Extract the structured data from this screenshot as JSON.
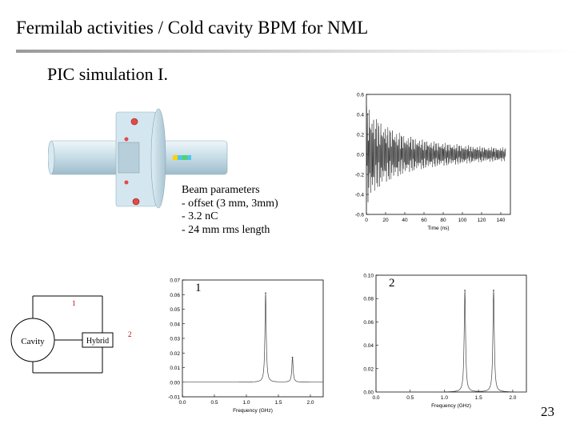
{
  "slide": {
    "title": "Fermilab activities / Cold cavity BPM for NML",
    "subtitle": "PIC simulation I.",
    "page_number": "23"
  },
  "beam_parameters": {
    "heading": "Beam parameters",
    "items": [
      "- offset (3 mm, 3mm)",
      "- 3.2 nC",
      "- 24 mm rms length"
    ]
  },
  "schematic": {
    "cavity_label": "Cavity",
    "hybrid_label": "Hybrid",
    "port1_label": "1",
    "port2_label": "2"
  },
  "chart_data": [
    {
      "type": "line",
      "xlabel": "Time (ns)",
      "ylabel": "",
      "xlim": [
        0,
        150
      ],
      "ylim": [
        -0.6,
        0.6
      ],
      "x_ticks": [
        "0",
        "20",
        "40",
        "60",
        "80",
        "100",
        "120",
        "140"
      ],
      "y_ticks": [
        "0.6",
        "0.4",
        "0.2",
        "0.0",
        "-0.2",
        "-0.4",
        "-0.6"
      ],
      "envelope": {
        "x": [
          0,
          5,
          10,
          20,
          40,
          60,
          80,
          100,
          120,
          145
        ],
        "amplitude": [
          0.55,
          0.45,
          0.38,
          0.3,
          0.2,
          0.15,
          0.12,
          0.1,
          0.08,
          0.07
        ]
      }
    },
    {
      "type": "line",
      "marker": "1",
      "xlabel": "Frequency (GHz)",
      "ylabel": "",
      "xlim": [
        0.0,
        2.2
      ],
      "ylim": [
        -0.01,
        0.07
      ],
      "x_ticks": [
        "0.0",
        "0.5",
        "1.0",
        "1.5",
        "2.0"
      ],
      "y_ticks": [
        "0.07",
        "0.06",
        "0.05",
        "0.04",
        "0.03",
        "0.02",
        "0.01",
        "0.00",
        "-0.01"
      ],
      "peaks": [
        {
          "x": 1.3,
          "y": 0.061
        },
        {
          "x": 1.72,
          "y": 0.017
        }
      ],
      "baseline": 0.0
    },
    {
      "type": "line",
      "marker": "2",
      "xlabel": "Frequency (GHz)",
      "ylabel": "",
      "xlim": [
        0.0,
        2.2
      ],
      "ylim": [
        0.0,
        0.1
      ],
      "x_ticks": [
        "0.0",
        "0.5",
        "1.0",
        "1.5",
        "2.0"
      ],
      "y_ticks": [
        "0.10",
        "0.08",
        "0.06",
        "0.04",
        "0.02",
        "0.00"
      ],
      "peaks": [
        {
          "x": 1.3,
          "y": 0.087
        },
        {
          "x": 1.72,
          "y": 0.087
        }
      ],
      "baseline": 0.0
    }
  ]
}
